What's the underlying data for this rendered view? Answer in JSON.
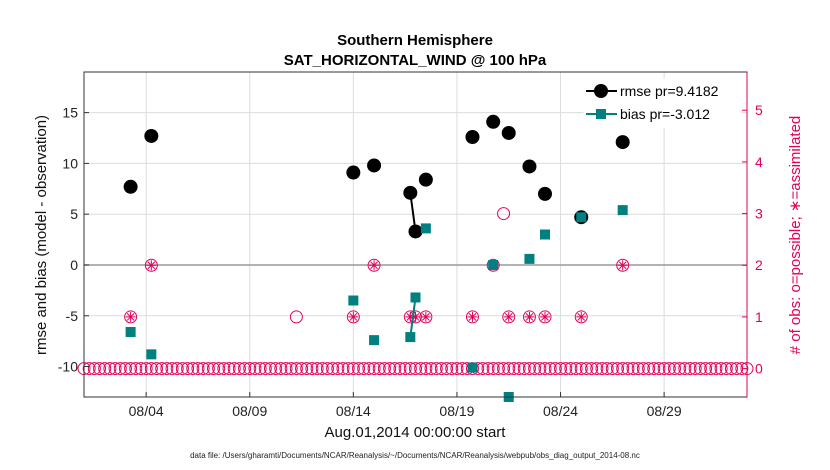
{
  "chart_data": {
    "type": "scatter",
    "title": [
      "Southern Hemisphere",
      "SAT_HORIZONTAL_WIND @ 100 hPa"
    ],
    "xlabel": "Aug.01,2014 00:00:00 start",
    "ylabel": "rmse and bias (model - observation)",
    "y2label": "# of obs: o=possible; ∗=assimilated",
    "xlim": [
      0,
      32
    ],
    "ylim": [
      -13,
      19
    ],
    "y2lim": [
      -0.55,
      5.74
    ],
    "x_ticks": [
      3,
      8,
      13,
      18,
      23,
      28
    ],
    "x_tick_labels": [
      "08/04",
      "08/09",
      "08/14",
      "08/19",
      "08/24",
      "08/29"
    ],
    "y_ticks": [
      -10,
      -5,
      0,
      5,
      10,
      15
    ],
    "y2_ticks": [
      0,
      1,
      2,
      3,
      4,
      5
    ],
    "zero_line": 0,
    "legend_location": "top-right",
    "series": [
      {
        "name": "rmse",
        "legend_label": "rmse pr=9.4182",
        "color": "#000000",
        "marker": "circle",
        "x": [
          2.25,
          3.25,
          13.0,
          14.0,
          15.75,
          16.0,
          16.5,
          18.75,
          19.75,
          20.5,
          21.5,
          22.25,
          24.0,
          26.0
        ],
        "y": [
          7.7,
          12.7,
          9.1,
          9.8,
          7.1,
          3.3,
          8.4,
          12.6,
          14.1,
          13.0,
          9.7,
          7.0,
          4.7,
          12.1
        ],
        "connected_segments": [
          [
            15.75,
            16.0
          ]
        ]
      },
      {
        "name": "bias",
        "legend_label": "bias pr=-3.012",
        "color": "#008080",
        "marker": "square",
        "x": [
          2.25,
          3.25,
          13.0,
          14.0,
          15.75,
          16.0,
          16.5,
          18.75,
          19.75,
          20.5,
          21.5,
          22.25,
          24.0,
          26.0
        ],
        "y": [
          -6.6,
          -8.8,
          -3.5,
          -7.4,
          -7.1,
          -3.2,
          3.6,
          -10.1,
          0.0,
          -13.0,
          0.6,
          3.0,
          4.7,
          5.4
        ],
        "connected_segments": [
          [
            15.75,
            16.0
          ]
        ]
      },
      {
        "name": "obs_possible",
        "color": "#e4005a",
        "marker": "open-circle",
        "x": [
          2.25,
          3.25,
          10.25,
          13.0,
          14.0,
          15.75,
          16.0,
          16.5,
          18.75,
          19.75,
          20.25,
          20.5,
          21.5,
          22.25,
          24.0,
          26.0
        ],
        "y": [
          1,
          2,
          1,
          1,
          2,
          1,
          1,
          1,
          1,
          2,
          3,
          1,
          1,
          1,
          1,
          2
        ]
      },
      {
        "name": "obs_assimilated",
        "color": "#e4005a",
        "marker": "asterisk",
        "x": [
          2.25,
          3.25,
          13.0,
          14.0,
          15.75,
          16.0,
          16.5,
          18.75,
          19.75,
          20.5,
          21.5,
          22.25,
          24.0,
          26.0
        ],
        "y": [
          1,
          2,
          1,
          2,
          1,
          1,
          1,
          1,
          2,
          1,
          1,
          1,
          1,
          2
        ]
      },
      {
        "name": "obs_baseline",
        "color": "#e4005a",
        "marker": "open-circle",
        "x_start": 0.0,
        "x_end": 32.0,
        "x_step": 0.25,
        "y": 0
      }
    ]
  },
  "footer": "data file: /Users/gharamti/Documents/NCAR/Reanalysis/~/Documents/NCAR/Reanalysis/webpub/obs_diag_output_2014-08.nc"
}
